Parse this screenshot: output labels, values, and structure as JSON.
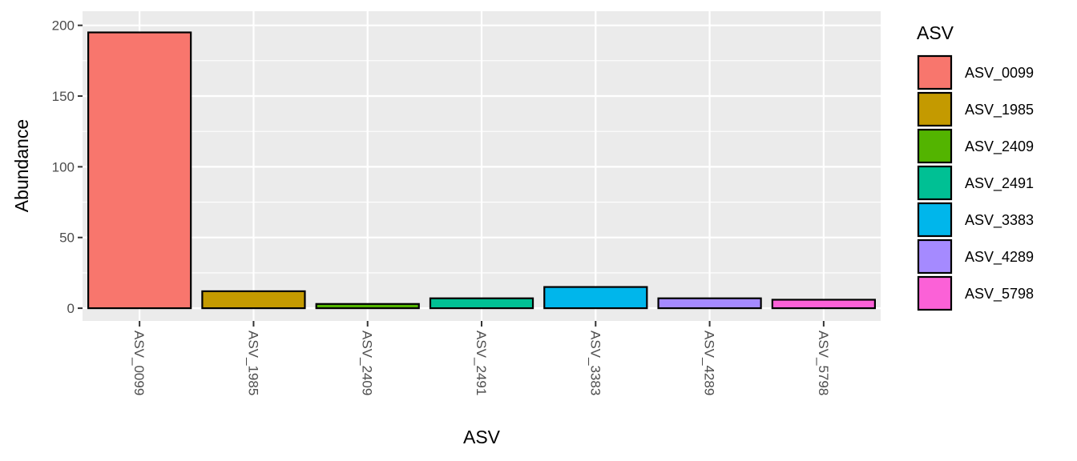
{
  "chart_data": {
    "type": "bar",
    "title": "",
    "xlabel": "ASV",
    "ylabel": "Abundance",
    "categories": [
      "ASV_0099",
      "ASV_1985",
      "ASV_2409",
      "ASV_2491",
      "ASV_3383",
      "ASV_4289",
      "ASV_5798"
    ],
    "values": [
      195,
      12,
      3,
      7,
      15,
      7,
      6
    ],
    "colors": [
      "#F8766D",
      "#C49A00",
      "#53B400",
      "#00C094",
      "#00B6EB",
      "#A58AFF",
      "#FB61D7"
    ],
    "ylim": [
      -9,
      210
    ],
    "yticks": [
      0,
      50,
      100,
      150,
      200
    ],
    "ytick_labels": [
      "0",
      "50",
      "100",
      "150",
      "200"
    ],
    "grid": true,
    "legend": {
      "title": "ASV",
      "position": "right",
      "entries": [
        "ASV_0099",
        "ASV_1985",
        "ASV_2409",
        "ASV_2491",
        "ASV_3383",
        "ASV_4289",
        "ASV_5798"
      ]
    }
  }
}
